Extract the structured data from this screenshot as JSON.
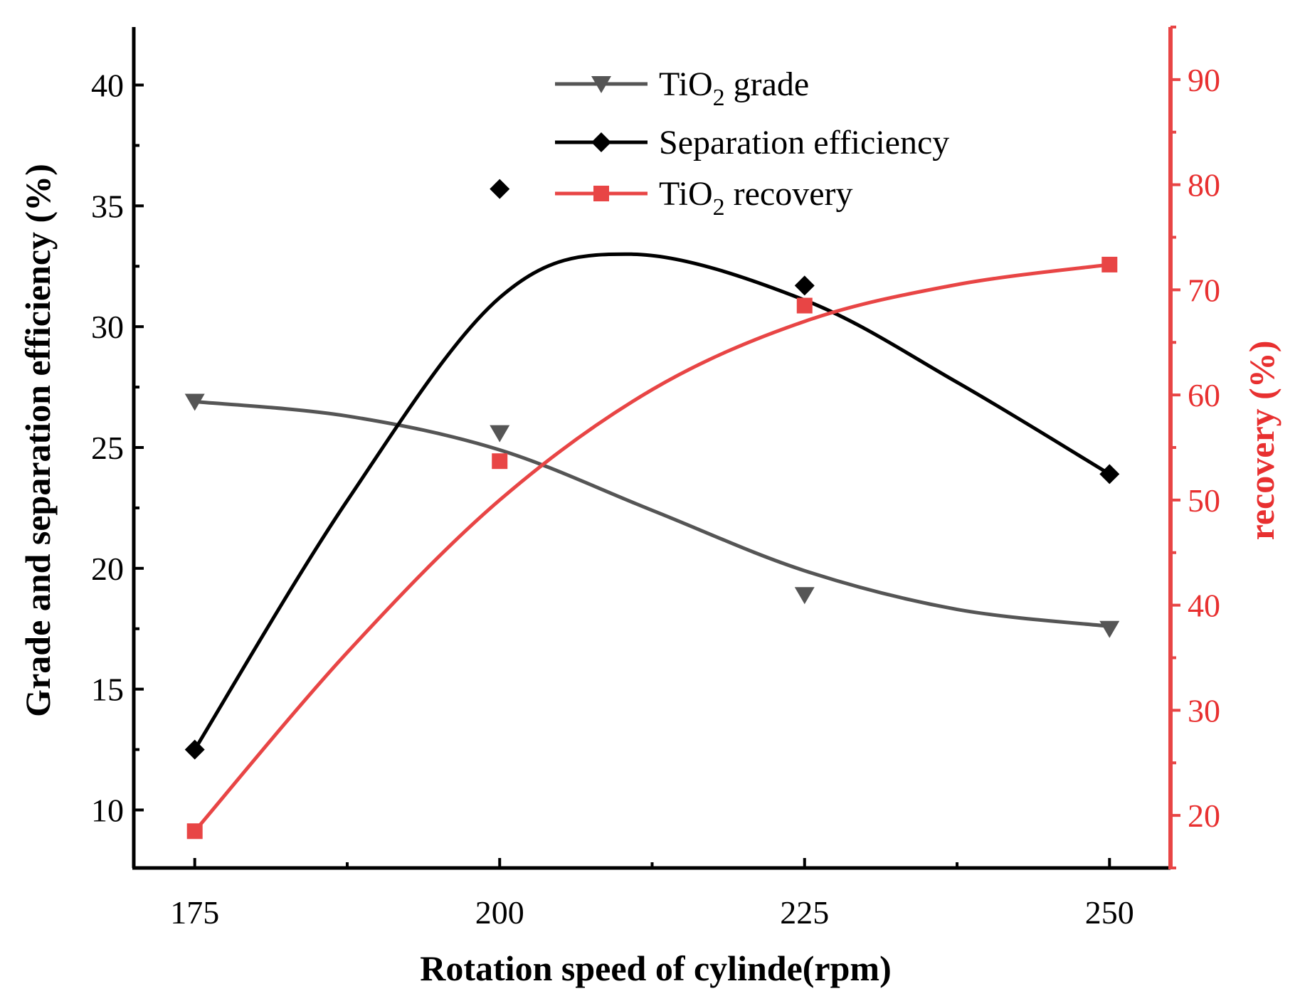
{
  "chart_data": {
    "type": "line",
    "title": "",
    "xlabel": "Rotation speed of cylinde(rpm)",
    "ylabel": "Grade and separation efficiency (%)",
    "y2label": "recovery (%)",
    "x": [
      175,
      200,
      225,
      250
    ],
    "xticks": [
      "175",
      "200",
      "225",
      "250"
    ],
    "xlim": [
      170,
      255
    ],
    "ylim": [
      7.6,
      42.4
    ],
    "yticks": [
      "10",
      "15",
      "20",
      "25",
      "30",
      "35",
      "40"
    ],
    "y2lim": [
      15,
      95
    ],
    "y2ticks": [
      "20",
      "30",
      "40",
      "50",
      "60",
      "70",
      "80",
      "90"
    ],
    "legend_position": "top-center",
    "series": [
      {
        "name": "TiO2 grade",
        "label_main": "TiO",
        "label_sub": "2",
        "label_rest": " grade",
        "axis": "left",
        "color": "#555555",
        "marker": "triangle-down",
        "values": [
          26.9,
          25.6,
          18.9,
          17.5
        ],
        "fit": [
          [
            175,
            26.9
          ],
          [
            187.5,
            26.3
          ],
          [
            200,
            24.9
          ],
          [
            212.5,
            22.4
          ],
          [
            225,
            19.9
          ],
          [
            237.5,
            18.3
          ],
          [
            250,
            17.6
          ]
        ]
      },
      {
        "name": "Separation efficiency",
        "label_main": "Separation efficiency",
        "label_sub": "",
        "label_rest": "",
        "axis": "left",
        "color": "#000000",
        "marker": "diamond",
        "values": [
          12.5,
          35.7,
          31.7,
          23.9
        ],
        "fit": [
          [
            175,
            12.5
          ],
          [
            187.5,
            22.8
          ],
          [
            200,
            31.2
          ],
          [
            210.8,
            33.0
          ],
          [
            225,
            31.1
          ],
          [
            237.5,
            27.7
          ],
          [
            250,
            23.9
          ]
        ]
      },
      {
        "name": "TiO2 recovery",
        "label_main": "TiO",
        "label_sub": "2",
        "label_rest": " recovery",
        "axis": "right",
        "color": "#e84545",
        "marker": "square",
        "values": [
          18.5,
          53.7,
          68.5,
          72.4
        ],
        "fit": [
          [
            175,
            18.5
          ],
          [
            187.5,
            35.5
          ],
          [
            200,
            50.0
          ],
          [
            212.5,
            60.5
          ],
          [
            225,
            67.0
          ],
          [
            237.5,
            70.5
          ],
          [
            250,
            72.4
          ]
        ]
      }
    ]
  }
}
